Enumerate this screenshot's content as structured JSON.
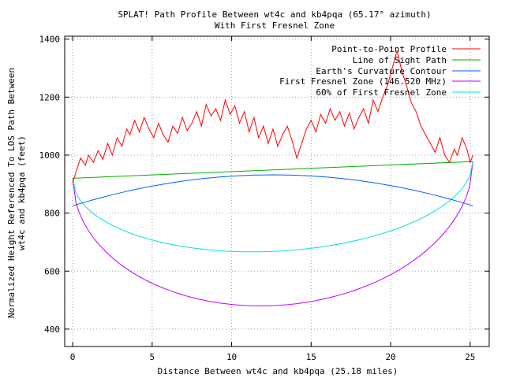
{
  "chart_data": {
    "type": "line",
    "title": "SPLAT! Path Profile Between wt4c and kb4pqa (65.17° azimuth)",
    "subtitle": "With First Fresnel Zone",
    "xlabel": "Distance Between wt4c and kb4pqa (25.18 miles)",
    "ylabel_line1": "Normalized Height Referenced To LOS Path Between",
    "ylabel_line2": "wt4c and kb4pqa (feet)",
    "xlim": [
      -0.5,
      26.2
    ],
    "ylim": [
      340,
      1410
    ],
    "xticks": [
      0,
      5,
      10,
      15,
      20,
      25
    ],
    "yticks": [
      400,
      600,
      800,
      1000,
      1200,
      1400
    ],
    "grid": true,
    "legend_position": "top-right",
    "series": [
      {
        "name": "Point-to-Point Profile",
        "color": "#ff0000",
        "x": [
          0,
          0.2,
          0.5,
          0.8,
          1.0,
          1.3,
          1.6,
          1.9,
          2.2,
          2.5,
          2.8,
          3.1,
          3.4,
          3.6,
          3.9,
          4.2,
          4.5,
          4.8,
          5.1,
          5.4,
          5.7,
          6.0,
          6.3,
          6.6,
          6.9,
          7.2,
          7.5,
          7.8,
          8.1,
          8.4,
          8.7,
          9.0,
          9.3,
          9.6,
          9.9,
          10.2,
          10.5,
          10.8,
          11.1,
          11.4,
          11.7,
          12.0,
          12.3,
          12.6,
          12.9,
          13.2,
          13.5,
          13.8,
          14.1,
          14.4,
          14.7,
          15.0,
          15.3,
          15.6,
          15.9,
          16.2,
          16.5,
          16.8,
          17.1,
          17.4,
          17.7,
          18.0,
          18.3,
          18.6,
          18.9,
          19.2,
          19.5,
          19.8,
          20.1,
          20.4,
          20.7,
          21.0,
          21.3,
          21.6,
          21.9,
          22.2,
          22.5,
          22.8,
          23.1,
          23.4,
          23.7,
          24.0,
          24.2,
          24.5,
          24.8,
          25.0,
          25.18
        ],
        "values": [
          905,
          940,
          990,
          965,
          1000,
          975,
          1015,
          985,
          1040,
          1000,
          1060,
          1030,
          1090,
          1070,
          1120,
          1080,
          1130,
          1090,
          1060,
          1110,
          1070,
          1045,
          1100,
          1075,
          1130,
          1085,
          1110,
          1150,
          1100,
          1175,
          1135,
          1160,
          1120,
          1190,
          1140,
          1170,
          1110,
          1150,
          1080,
          1130,
          1060,
          1100,
          1040,
          1090,
          1030,
          1070,
          1100,
          1050,
          990,
          1040,
          1090,
          1120,
          1080,
          1140,
          1110,
          1160,
          1120,
          1150,
          1100,
          1145,
          1090,
          1130,
          1160,
          1110,
          1190,
          1150,
          1200,
          1240,
          1300,
          1360,
          1290,
          1240,
          1180,
          1150,
          1100,
          1070,
          1040,
          1010,
          1060,
          1000,
          975,
          1020,
          1000,
          1060,
          1020,
          975,
          1000
        ]
      },
      {
        "name": "Line of Sight Path",
        "color": "#00b000"
      },
      {
        "name": "Earth's Curvature Contour",
        "color": "#0060ff"
      },
      {
        "name": "First Fresnel Zone (146.520 MHz)",
        "color": "#c000ff"
      },
      {
        "name": "60% of First Fresnel Zone",
        "color": "#00e0e0"
      }
    ]
  }
}
